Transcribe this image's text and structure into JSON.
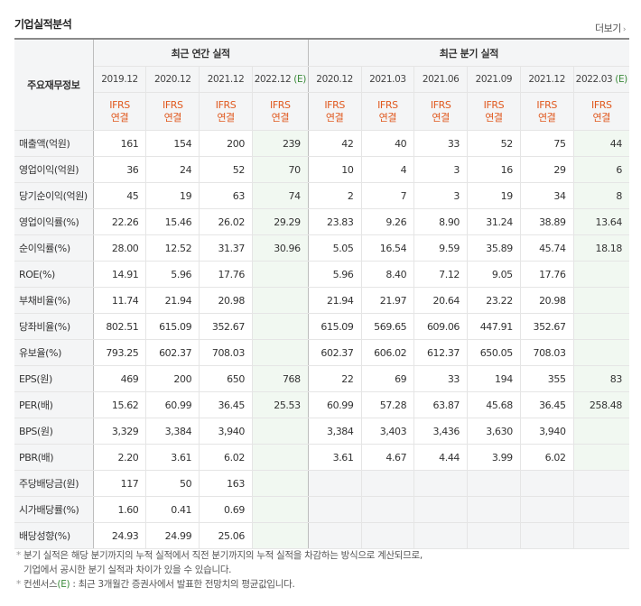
{
  "title": "기업실적분석",
  "more_label": "더보기",
  "group_annual": "최근 연간 실적",
  "group_quarter": "최근 분기 실적",
  "row_header_label": "주요재무정보",
  "periods_annual": [
    "2019.12",
    "2020.12",
    "2021.12",
    "2022.12"
  ],
  "periods_quarter": [
    "2020.12",
    "2021.03",
    "2021.06",
    "2021.09",
    "2021.12",
    "2022.03"
  ],
  "estimate_mark": "(E)",
  "standard_top": "IFRS",
  "standard_bottom": "연결",
  "rows": [
    {
      "label": "매출액(억원)",
      "annual": [
        "161",
        "154",
        "200",
        "239"
      ],
      "quarter": [
        "42",
        "40",
        "33",
        "52",
        "75",
        "44"
      ]
    },
    {
      "label": "영업이익(억원)",
      "annual": [
        "36",
        "24",
        "52",
        "70"
      ],
      "quarter": [
        "10",
        "4",
        "3",
        "16",
        "29",
        "6"
      ]
    },
    {
      "label": "당기순이익(억원)",
      "annual": [
        "45",
        "19",
        "63",
        "74"
      ],
      "quarter": [
        "2",
        "7",
        "3",
        "19",
        "34",
        "8"
      ]
    },
    {
      "label": "영업이익률(%)",
      "annual": [
        "22.26",
        "15.46",
        "26.02",
        "29.29"
      ],
      "quarter": [
        "23.83",
        "9.26",
        "8.90",
        "31.24",
        "38.89",
        "13.64"
      ]
    },
    {
      "label": "순이익률(%)",
      "annual": [
        "28.00",
        "12.52",
        "31.37",
        "30.96"
      ],
      "quarter": [
        "5.05",
        "16.54",
        "9.59",
        "35.89",
        "45.74",
        "18.18"
      ]
    },
    {
      "label": "ROE(%)",
      "annual": [
        "14.91",
        "5.96",
        "17.76",
        ""
      ],
      "quarter": [
        "5.96",
        "8.40",
        "7.12",
        "9.05",
        "17.76",
        ""
      ]
    },
    {
      "label": "부채비율(%)",
      "annual": [
        "11.74",
        "21.94",
        "20.98",
        ""
      ],
      "quarter": [
        "21.94",
        "21.97",
        "20.64",
        "23.22",
        "20.98",
        ""
      ]
    },
    {
      "label": "당좌비율(%)",
      "annual": [
        "802.51",
        "615.09",
        "352.67",
        ""
      ],
      "quarter": [
        "615.09",
        "569.65",
        "609.06",
        "447.91",
        "352.67",
        ""
      ]
    },
    {
      "label": "유보율(%)",
      "annual": [
        "793.25",
        "602.37",
        "708.03",
        ""
      ],
      "quarter": [
        "602.37",
        "606.02",
        "612.37",
        "650.05",
        "708.03",
        ""
      ]
    },
    {
      "label": "EPS(원)",
      "annual": [
        "469",
        "200",
        "650",
        "768"
      ],
      "quarter": [
        "22",
        "69",
        "33",
        "194",
        "355",
        "83"
      ]
    },
    {
      "label": "PER(배)",
      "annual": [
        "15.62",
        "60.99",
        "36.45",
        "25.53"
      ],
      "quarter": [
        "60.99",
        "57.28",
        "63.87",
        "45.68",
        "36.45",
        "258.48"
      ]
    },
    {
      "label": "BPS(원)",
      "annual": [
        "3,329",
        "3,384",
        "3,940",
        ""
      ],
      "quarter": [
        "3,384",
        "3,403",
        "3,436",
        "3,630",
        "3,940",
        ""
      ]
    },
    {
      "label": "PBR(배)",
      "annual": [
        "2.20",
        "3.61",
        "6.02",
        ""
      ],
      "quarter": [
        "3.61",
        "4.67",
        "4.44",
        "3.99",
        "6.02",
        ""
      ]
    },
    {
      "label": "주당배당금(원)",
      "annual": [
        "117",
        "50",
        "163",
        ""
      ],
      "quarter": [
        "",
        "",
        "",
        "",
        "",
        ""
      ]
    },
    {
      "label": "시가배당률(%)",
      "annual": [
        "1.60",
        "0.41",
        "0.69",
        ""
      ],
      "quarter": [
        "",
        "",
        "",
        "",
        "",
        ""
      ]
    },
    {
      "label": "배당성향(%)",
      "annual": [
        "24.93",
        "24.99",
        "25.06",
        ""
      ],
      "quarter": [
        "",
        "",
        "",
        "",
        "",
        ""
      ]
    }
  ],
  "group_starts": [
    3,
    9,
    13
  ],
  "footnote": {
    "line1": "분기 실적은 해당 분기까지의 누적 실적에서 직전 분기까지의 누적 실적을 차감하는 방식으로 계산되므로,",
    "line2": "기업에서 공시한 분기 실적과 차이가 있을 수 있습니다.",
    "line3_pre": "컨센서스",
    "line3_mark": "(E)",
    "line3_post": ": 최근 3개월간 증권사에서 발표한 전망치의 평균값입니다.",
    "bullet": "*"
  }
}
